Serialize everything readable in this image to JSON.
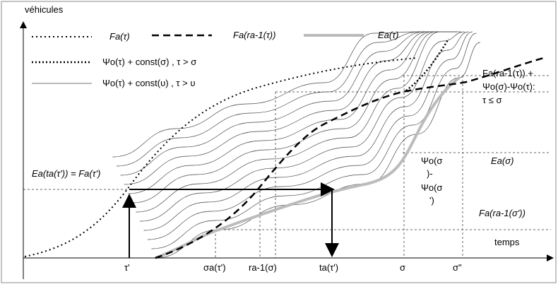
{
  "axes": {
    "y_label": "véhicules",
    "x_label": "temps"
  },
  "legend": [
    "Fa(τ)",
    "Fa(ra-1(τ))",
    "Ea(τ)",
    "Ψo(τ) + const(σ) , τ > σ",
    "Ψo(τ) + const(υ) , τ > υ"
  ],
  "annotations": {
    "equality": "Ea(ta(τ')) = Fa(τ')",
    "upper": [
      "Fa(ra-1(τ)) +",
      "Ψo(σ)-Ψo(τ):",
      "τ ≤ σ"
    ],
    "e_sigma": "Ea(σ)",
    "psi_diff": [
      "Ψo(σ",
      ")-",
      "Ψo(σ",
      "')"
    ],
    "f_sigma_prime": "Fa(ra-1(σ'))"
  },
  "x_ticks": [
    "τ'",
    "σa(τ')",
    "ra-1(σ)",
    "ta(τ')",
    "σ",
    "σ\""
  ]
}
